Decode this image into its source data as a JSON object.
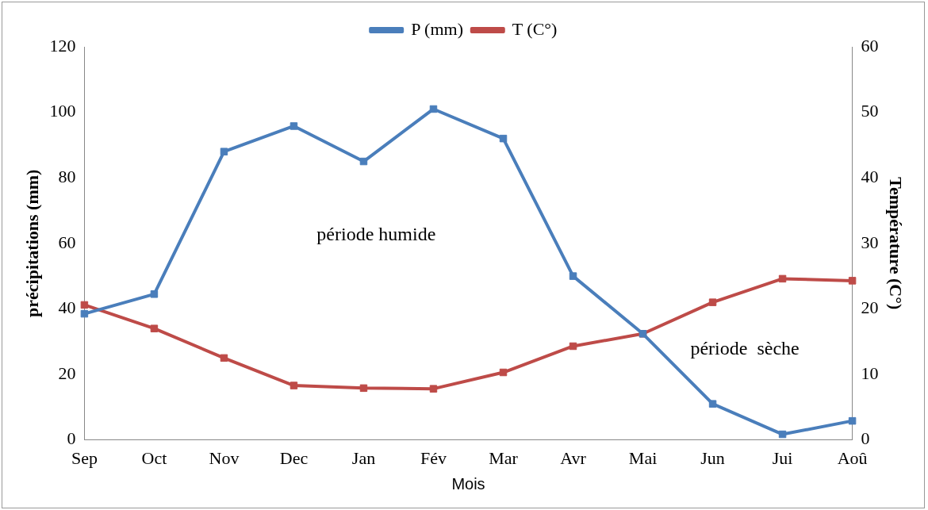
{
  "chart_data": {
    "type": "line",
    "xlabel": "Mois",
    "ylabel": "précipitations (mm)",
    "y2label": "Température (C°)",
    "categories": [
      "Sep",
      "Oct",
      "Nov",
      "Dec",
      "Jan",
      "Fév",
      "Mar",
      "Avr",
      "Mai",
      "Jun",
      "Jui",
      "Aoû"
    ],
    "series": [
      {
        "name": "P (mm)",
        "color": "#4a7ebb",
        "values": [
          38.5,
          44.5,
          88,
          95.8,
          85,
          101,
          92,
          50,
          32.4,
          11,
          1.7,
          5.8
        ]
      },
      {
        "name": "T (C°)",
        "color": "#be4b48",
        "axis": "y2",
        "values": [
          20.6,
          17,
          12.5,
          8.3,
          7.9,
          7.8,
          10.3,
          14.3,
          16.2,
          21,
          24.6,
          24.3
        ]
      }
    ],
    "ylim": [
      0,
      120
    ],
    "yticks": [
      0,
      20,
      40,
      60,
      80,
      100,
      120
    ],
    "y2lim": [
      0,
      60
    ],
    "y2ticks": [
      0,
      10,
      20,
      30,
      40,
      50,
      60
    ],
    "annotations": [
      "période humide",
      "période  sèche"
    ],
    "legend": "top",
    "marker": "square",
    "line_style": "solid",
    "grid": false
  }
}
